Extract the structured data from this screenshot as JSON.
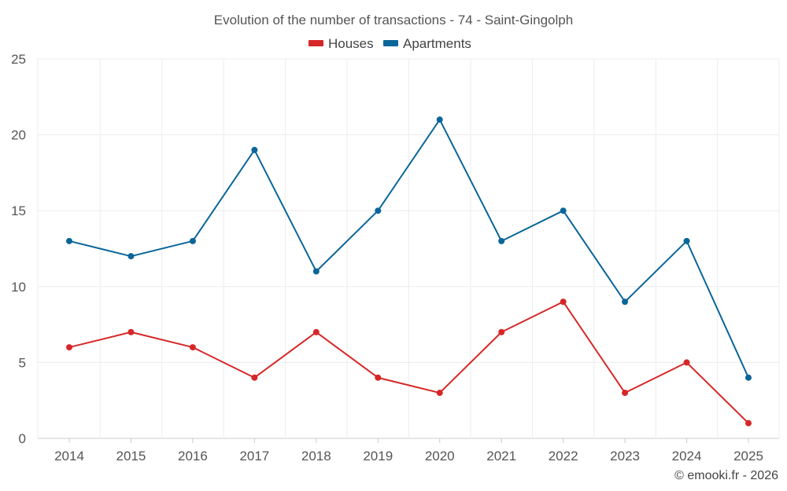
{
  "chart_data": {
    "type": "line",
    "title": "Evolution of the number of transactions - 74 - Saint-Gingolph",
    "categories": [
      "2014",
      "2015",
      "2016",
      "2017",
      "2018",
      "2019",
      "2020",
      "2021",
      "2022",
      "2023",
      "2024",
      "2025"
    ],
    "series": [
      {
        "name": "Houses",
        "color": "#d62728",
        "values": [
          6,
          7,
          6,
          4,
          7,
          4,
          3,
          7,
          9,
          3,
          5,
          1
        ]
      },
      {
        "name": "Apartments",
        "color": "#0a6699",
        "values": [
          13,
          12,
          13,
          19,
          11,
          15,
          21,
          13,
          15,
          9,
          13,
          4
        ]
      }
    ],
    "ylim": [
      0,
      25
    ],
    "yticks": [
      0,
      5,
      10,
      15,
      20,
      25
    ],
    "xlabel": "",
    "ylabel": "",
    "grid": true,
    "legend": "top-center"
  },
  "credit": "© emooki.fr - 2026"
}
